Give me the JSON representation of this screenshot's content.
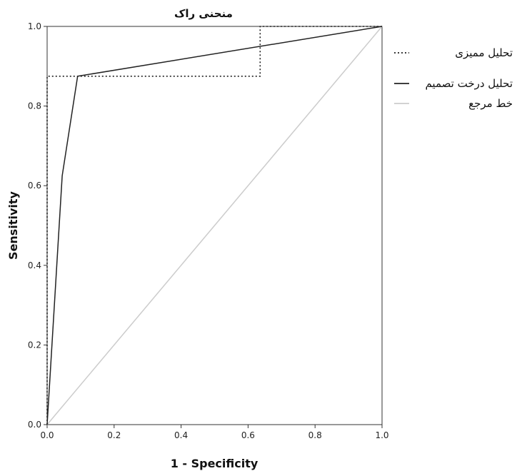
{
  "chart_data": {
    "type": "line",
    "title": "منحنی راک",
    "xlabel": "1 - Specificity",
    "ylabel": "Sensitivity",
    "xlim": [
      0,
      1
    ],
    "ylim": [
      0,
      1
    ],
    "x_ticks": [
      "0.0",
      "0.2",
      "0.4",
      "0.6",
      "0.8",
      "1.0"
    ],
    "y_ticks": [
      "0.0",
      "0.2",
      "0.4",
      "0.6",
      "0.8",
      "1.0"
    ],
    "grid": false,
    "legend_position": "right",
    "series": [
      {
        "name": "تحلیل ممیزی",
        "style": "dotted",
        "color": "#222222",
        "x": [
          0,
          0,
          0.636,
          0.636,
          1
        ],
        "y": [
          0,
          0.875,
          0.875,
          1,
          1
        ]
      },
      {
        "name": "تحلیل درخت تصمیم",
        "style": "solid",
        "color": "#222222",
        "x": [
          0,
          0.045,
          0.091,
          1
        ],
        "y": [
          0,
          0.625,
          0.875,
          1
        ]
      },
      {
        "name": "خط مرجع",
        "style": "solid",
        "color": "#cccccc",
        "x": [
          0,
          1
        ],
        "y": [
          0,
          1
        ]
      }
    ]
  }
}
